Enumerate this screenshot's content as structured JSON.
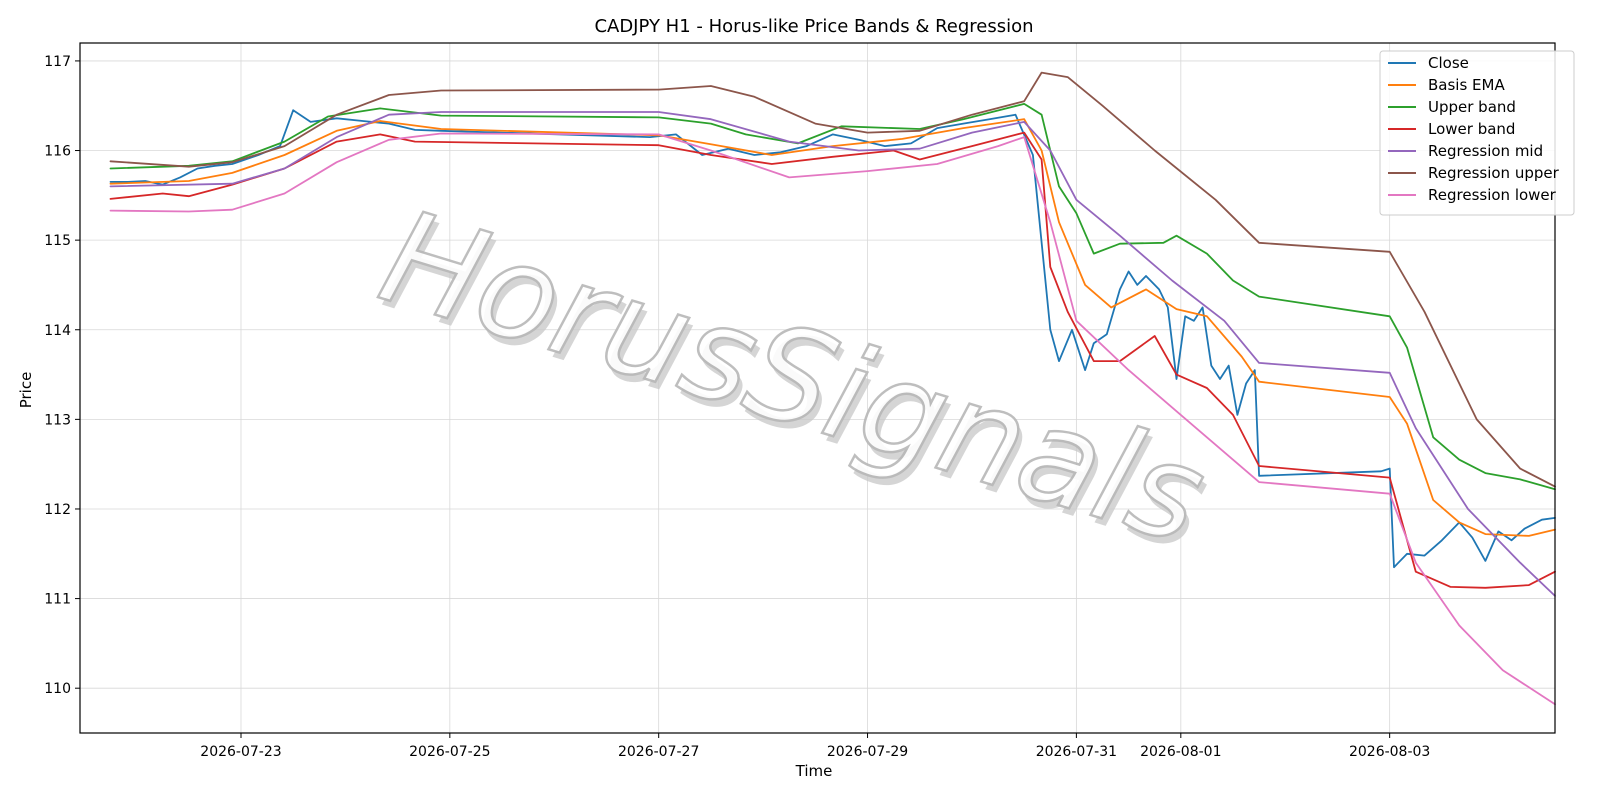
{
  "chart_data": {
    "type": "line",
    "title": "CADJPY H1 - Horus-like Price Bands & Regression",
    "xlabel": "Time",
    "ylabel": "Price",
    "watermark": "HorusSignals",
    "x_ticks": [
      "2026-07-23",
      "2026-07-25",
      "2026-07-27",
      "2026-07-29",
      "2026-07-31",
      "2026-08-01",
      "2026-08-03"
    ],
    "y_ticks": [
      110,
      111,
      112,
      113,
      114,
      115,
      116,
      117
    ],
    "xlim": [
      "2026-07-21 11:00",
      "2026-08-04 14:00"
    ],
    "ylim": [
      109.5,
      117.2
    ],
    "grid": true,
    "legend_position": "top-right",
    "series": [
      {
        "name": "Close",
        "color": "#1f77b4",
        "points": [
          [
            "2026-07-21 18:00",
            115.65
          ],
          [
            "2026-07-21 22:00",
            115.65
          ],
          [
            "2026-07-22 02:00",
            115.66
          ],
          [
            "2026-07-22 06:00",
            115.62
          ],
          [
            "2026-07-22 10:00",
            115.7
          ],
          [
            "2026-07-22 14:00",
            115.8
          ],
          [
            "2026-07-22 18:00",
            115.83
          ],
          [
            "2026-07-22 22:00",
            115.85
          ],
          [
            "2026-07-23 04:00",
            115.95
          ],
          [
            "2026-07-23 09:00",
            116.05
          ],
          [
            "2026-07-23 12:00",
            116.45
          ],
          [
            "2026-07-23 16:00",
            116.32
          ],
          [
            "2026-07-23 22:00",
            116.36
          ],
          [
            "2026-07-24 04:00",
            116.33
          ],
          [
            "2026-07-24 10:00",
            116.3
          ],
          [
            "2026-07-24 16:00",
            116.23
          ],
          [
            "2026-07-24 22:00",
            116.22
          ],
          [
            "2026-07-26 22:00",
            116.15
          ],
          [
            "2026-07-27 04:00",
            116.18
          ],
          [
            "2026-07-27 10:00",
            115.95
          ],
          [
            "2026-07-27 16:00",
            116.02
          ],
          [
            "2026-07-27 22:00",
            115.95
          ],
          [
            "2026-07-28 04:00",
            115.98
          ],
          [
            "2026-07-28 10:00",
            116.05
          ],
          [
            "2026-07-28 16:00",
            116.18
          ],
          [
            "2026-07-28 22:00",
            116.12
          ],
          [
            "2026-07-29 04:00",
            116.05
          ],
          [
            "2026-07-29 10:00",
            116.08
          ],
          [
            "2026-07-29 16:00",
            116.25
          ],
          [
            "2026-07-29 22:00",
            116.3
          ],
          [
            "2026-07-30 04:00",
            116.35
          ],
          [
            "2026-07-30 10:00",
            116.4
          ],
          [
            "2026-07-30 14:00",
            115.95
          ],
          [
            "2026-07-30 18:00",
            114.0
          ],
          [
            "2026-07-30 20:00",
            113.65
          ],
          [
            "2026-07-30 23:00",
            114.0
          ],
          [
            "2026-07-31 02:00",
            113.55
          ],
          [
            "2026-07-31 04:00",
            113.85
          ],
          [
            "2026-07-31 07:00",
            113.95
          ],
          [
            "2026-07-31 10:00",
            114.45
          ],
          [
            "2026-07-31 12:00",
            114.65
          ],
          [
            "2026-07-31 14:00",
            114.5
          ],
          [
            "2026-07-31 16:00",
            114.6
          ],
          [
            "2026-07-31 19:00",
            114.45
          ],
          [
            "2026-07-31 21:00",
            114.25
          ],
          [
            "2026-07-31 23:00",
            113.45
          ],
          [
            "2026-08-01 01:00",
            114.15
          ],
          [
            "2026-08-01 03:00",
            114.1
          ],
          [
            "2026-08-01 05:00",
            114.25
          ],
          [
            "2026-08-01 07:00",
            113.6
          ],
          [
            "2026-08-01 09:00",
            113.45
          ],
          [
            "2026-08-01 11:00",
            113.6
          ],
          [
            "2026-08-01 13:00",
            113.05
          ],
          [
            "2026-08-01 15:00",
            113.4
          ],
          [
            "2026-08-01 17:00",
            113.55
          ],
          [
            "2026-08-01 18:00",
            112.37
          ],
          [
            "2026-08-02 22:00",
            112.42
          ],
          [
            "2026-08-03 00:00",
            112.45
          ],
          [
            "2026-08-03 01:00",
            111.35
          ],
          [
            "2026-08-03 04:00",
            111.5
          ],
          [
            "2026-08-03 08:00",
            111.48
          ],
          [
            "2026-08-03 12:00",
            111.65
          ],
          [
            "2026-08-03 16:00",
            111.85
          ],
          [
            "2026-08-03 19:00",
            111.68
          ],
          [
            "2026-08-03 22:00",
            111.42
          ],
          [
            "2026-08-04 01:00",
            111.75
          ],
          [
            "2026-08-04 04:00",
            111.65
          ],
          [
            "2026-08-04 07:00",
            111.78
          ],
          [
            "2026-08-04 11:00",
            111.88
          ],
          [
            "2026-08-04 14:00",
            111.9
          ]
        ]
      },
      {
        "name": "Basis EMA",
        "color": "#ff7f0e",
        "points": [
          [
            "2026-07-21 18:00",
            115.63
          ],
          [
            "2026-07-22 12:00",
            115.66
          ],
          [
            "2026-07-22 22:00",
            115.75
          ],
          [
            "2026-07-23 10:00",
            115.95
          ],
          [
            "2026-07-23 22:00",
            116.22
          ],
          [
            "2026-07-24 08:00",
            116.33
          ],
          [
            "2026-07-24 22:00",
            116.24
          ],
          [
            "2026-07-27 00:00",
            116.17
          ],
          [
            "2026-07-27 12:00",
            116.07
          ],
          [
            "2026-07-28 02:00",
            115.95
          ],
          [
            "2026-07-28 16:00",
            116.05
          ],
          [
            "2026-07-29 08:00",
            116.13
          ],
          [
            "2026-07-29 22:00",
            116.25
          ],
          [
            "2026-07-30 12:00",
            116.35
          ],
          [
            "2026-07-30 16:00",
            116.0
          ],
          [
            "2026-07-30 20:00",
            115.2
          ],
          [
            "2026-07-31 02:00",
            114.5
          ],
          [
            "2026-07-31 08:00",
            114.25
          ],
          [
            "2026-07-31 16:00",
            114.45
          ],
          [
            "2026-07-31 23:00",
            114.23
          ],
          [
            "2026-08-01 06:00",
            114.15
          ],
          [
            "2026-08-01 14:00",
            113.7
          ],
          [
            "2026-08-01 18:00",
            113.42
          ],
          [
            "2026-08-03 00:00",
            113.25
          ],
          [
            "2026-08-03 04:00",
            112.95
          ],
          [
            "2026-08-03 10:00",
            112.1
          ],
          [
            "2026-08-03 16:00",
            111.85
          ],
          [
            "2026-08-03 22:00",
            111.72
          ],
          [
            "2026-08-04 08:00",
            111.7
          ],
          [
            "2026-08-04 14:00",
            111.77
          ]
        ]
      },
      {
        "name": "Upper band",
        "color": "#2ca02c",
        "points": [
          [
            "2026-07-21 18:00",
            115.8
          ],
          [
            "2026-07-22 12:00",
            115.83
          ],
          [
            "2026-07-22 22:00",
            115.88
          ],
          [
            "2026-07-23 10:00",
            116.1
          ],
          [
            "2026-07-23 20:00",
            116.38
          ],
          [
            "2026-07-24 08:00",
            116.47
          ],
          [
            "2026-07-24 22:00",
            116.39
          ],
          [
            "2026-07-27 00:00",
            116.37
          ],
          [
            "2026-07-27 12:00",
            116.3
          ],
          [
            "2026-07-27 20:00",
            116.18
          ],
          [
            "2026-07-28 08:00",
            116.08
          ],
          [
            "2026-07-28 18:00",
            116.27
          ],
          [
            "2026-07-29 12:00",
            116.24
          ],
          [
            "2026-07-29 22:00",
            116.35
          ],
          [
            "2026-07-30 12:00",
            116.52
          ],
          [
            "2026-07-30 16:00",
            116.4
          ],
          [
            "2026-07-30 20:00",
            115.6
          ],
          [
            "2026-07-31 00:00",
            115.3
          ],
          [
            "2026-07-31 04:00",
            114.85
          ],
          [
            "2026-07-31 10:00",
            114.96
          ],
          [
            "2026-07-31 20:00",
            114.97
          ],
          [
            "2026-07-31 23:00",
            115.05
          ],
          [
            "2026-08-01 06:00",
            114.85
          ],
          [
            "2026-08-01 12:00",
            114.55
          ],
          [
            "2026-08-01 18:00",
            114.37
          ],
          [
            "2026-08-03 00:00",
            114.15
          ],
          [
            "2026-08-03 04:00",
            113.8
          ],
          [
            "2026-08-03 10:00",
            112.8
          ],
          [
            "2026-08-03 16:00",
            112.55
          ],
          [
            "2026-08-03 22:00",
            112.4
          ],
          [
            "2026-08-04 06:00",
            112.33
          ],
          [
            "2026-08-04 14:00",
            112.22
          ]
        ]
      },
      {
        "name": "Lower band",
        "color": "#d62728",
        "points": [
          [
            "2026-07-21 18:00",
            115.46
          ],
          [
            "2026-07-22 06:00",
            115.52
          ],
          [
            "2026-07-22 12:00",
            115.49
          ],
          [
            "2026-07-22 22:00",
            115.62
          ],
          [
            "2026-07-23 10:00",
            115.8
          ],
          [
            "2026-07-23 22:00",
            116.1
          ],
          [
            "2026-07-24 08:00",
            116.18
          ],
          [
            "2026-07-24 16:00",
            116.1
          ],
          [
            "2026-07-27 00:00",
            116.06
          ],
          [
            "2026-07-27 12:00",
            115.95
          ],
          [
            "2026-07-28 02:00",
            115.85
          ],
          [
            "2026-07-28 16:00",
            115.93
          ],
          [
            "2026-07-29 06:00",
            116.0
          ],
          [
            "2026-07-29 12:00",
            115.9
          ],
          [
            "2026-07-30 00:00",
            116.05
          ],
          [
            "2026-07-30 12:00",
            116.2
          ],
          [
            "2026-07-30 16:00",
            115.9
          ],
          [
            "2026-07-30 18:00",
            114.7
          ],
          [
            "2026-07-30 22:00",
            114.2
          ],
          [
            "2026-07-31 04:00",
            113.65
          ],
          [
            "2026-07-31 10:00",
            113.65
          ],
          [
            "2026-07-31 18:00",
            113.93
          ],
          [
            "2026-07-31 23:00",
            113.5
          ],
          [
            "2026-08-01 06:00",
            113.35
          ],
          [
            "2026-08-01 12:00",
            113.05
          ],
          [
            "2026-08-01 18:00",
            112.48
          ],
          [
            "2026-08-03 00:00",
            112.35
          ],
          [
            "2026-08-03 06:00",
            111.3
          ],
          [
            "2026-08-03 14:00",
            111.13
          ],
          [
            "2026-08-03 22:00",
            111.12
          ],
          [
            "2026-08-04 08:00",
            111.15
          ],
          [
            "2026-08-04 14:00",
            111.3
          ]
        ]
      },
      {
        "name": "Regression mid",
        "color": "#9467bd",
        "points": [
          [
            "2026-07-21 18:00",
            115.6
          ],
          [
            "2026-07-22 22:00",
            115.63
          ],
          [
            "2026-07-23 10:00",
            115.8
          ],
          [
            "2026-07-23 22:00",
            116.15
          ],
          [
            "2026-07-24 10:00",
            116.4
          ],
          [
            "2026-07-24 22:00",
            116.43
          ],
          [
            "2026-07-27 00:00",
            116.43
          ],
          [
            "2026-07-27 12:00",
            116.35
          ],
          [
            "2026-07-28 06:00",
            116.1
          ],
          [
            "2026-07-28 22:00",
            116.0
          ],
          [
            "2026-07-29 12:00",
            116.02
          ],
          [
            "2026-07-30 00:00",
            116.2
          ],
          [
            "2026-07-30 12:00",
            116.32
          ],
          [
            "2026-07-30 18:00",
            116.0
          ],
          [
            "2026-07-31 00:00",
            115.45
          ],
          [
            "2026-07-31 10:00",
            115.05
          ],
          [
            "2026-07-31 22:00",
            114.55
          ],
          [
            "2026-08-01 10:00",
            114.1
          ],
          [
            "2026-08-01 18:00",
            113.63
          ],
          [
            "2026-08-03 00:00",
            113.52
          ],
          [
            "2026-08-03 06:00",
            112.9
          ],
          [
            "2026-08-03 18:00",
            112.0
          ],
          [
            "2026-08-04 06:00",
            111.4
          ],
          [
            "2026-08-04 14:00",
            111.03
          ]
        ]
      },
      {
        "name": "Regression upper",
        "color": "#8c564b",
        "points": [
          [
            "2026-07-21 18:00",
            115.88
          ],
          [
            "2026-07-22 12:00",
            115.82
          ],
          [
            "2026-07-22 22:00",
            115.87
          ],
          [
            "2026-07-23 10:00",
            116.05
          ],
          [
            "2026-07-23 22:00",
            116.4
          ],
          [
            "2026-07-24 10:00",
            116.62
          ],
          [
            "2026-07-24 22:00",
            116.67
          ],
          [
            "2026-07-27 00:00",
            116.68
          ],
          [
            "2026-07-27 12:00",
            116.72
          ],
          [
            "2026-07-27 22:00",
            116.6
          ],
          [
            "2026-07-28 12:00",
            116.3
          ],
          [
            "2026-07-29 00:00",
            116.2
          ],
          [
            "2026-07-29 12:00",
            116.22
          ],
          [
            "2026-07-30 00:00",
            116.4
          ],
          [
            "2026-07-30 12:00",
            116.55
          ],
          [
            "2026-07-30 16:00",
            116.87
          ],
          [
            "2026-07-30 22:00",
            116.82
          ],
          [
            "2026-07-31 06:00",
            116.5
          ],
          [
            "2026-07-31 18:00",
            116.0
          ],
          [
            "2026-08-01 08:00",
            115.45
          ],
          [
            "2026-08-01 18:00",
            114.97
          ],
          [
            "2026-08-03 00:00",
            114.87
          ],
          [
            "2026-08-03 08:00",
            114.2
          ],
          [
            "2026-08-03 20:00",
            113.0
          ],
          [
            "2026-08-04 06:00",
            112.45
          ],
          [
            "2026-08-04 14:00",
            112.25
          ]
        ]
      },
      {
        "name": "Regression lower",
        "color": "#e377c2",
        "points": [
          [
            "2026-07-21 18:00",
            115.33
          ],
          [
            "2026-07-22 12:00",
            115.32
          ],
          [
            "2026-07-22 22:00",
            115.34
          ],
          [
            "2026-07-23 10:00",
            115.52
          ],
          [
            "2026-07-23 22:00",
            115.87
          ],
          [
            "2026-07-24 10:00",
            116.12
          ],
          [
            "2026-07-24 22:00",
            116.19
          ],
          [
            "2026-07-27 00:00",
            116.18
          ],
          [
            "2026-07-27 12:00",
            116.0
          ],
          [
            "2026-07-28 06:00",
            115.7
          ],
          [
            "2026-07-29 00:00",
            115.77
          ],
          [
            "2026-07-29 16:00",
            115.85
          ],
          [
            "2026-07-30 06:00",
            116.05
          ],
          [
            "2026-07-30 12:00",
            116.15
          ],
          [
            "2026-07-30 18:00",
            115.2
          ],
          [
            "2026-07-31 00:00",
            114.1
          ],
          [
            "2026-07-31 12:00",
            113.55
          ],
          [
            "2026-08-01 00:00",
            113.05
          ],
          [
            "2026-08-01 12:00",
            112.55
          ],
          [
            "2026-08-01 18:00",
            112.3
          ],
          [
            "2026-08-03 00:00",
            112.17
          ],
          [
            "2026-08-03 06:00",
            111.4
          ],
          [
            "2026-08-03 16:00",
            110.7
          ],
          [
            "2026-08-04 02:00",
            110.2
          ],
          [
            "2026-08-04 14:00",
            109.82
          ]
        ]
      }
    ]
  }
}
